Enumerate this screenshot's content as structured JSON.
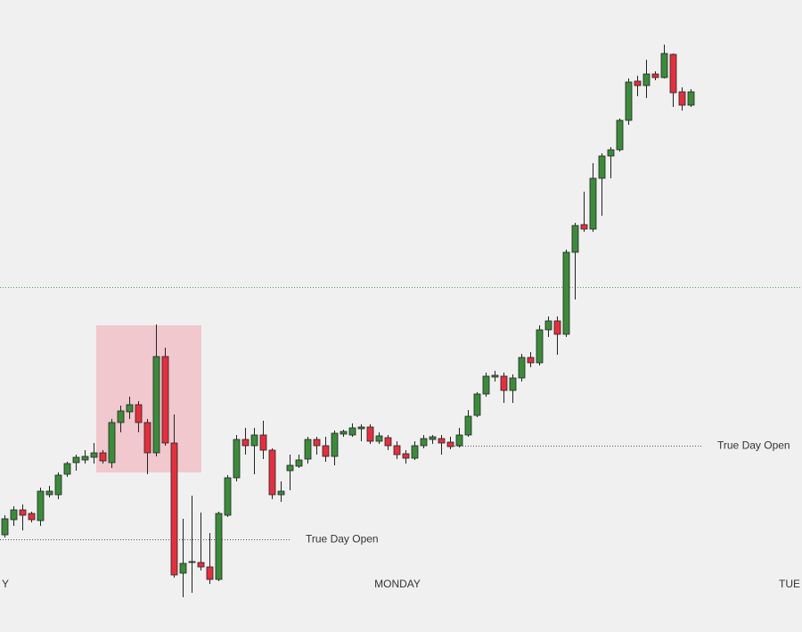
{
  "chart_data": {
    "type": "candlestick",
    "categories": [
      "Y",
      null,
      null,
      null,
      null,
      null,
      null,
      null,
      null,
      null,
      null,
      null,
      null,
      null,
      null,
      null,
      null,
      null,
      null,
      null,
      null,
      null,
      null,
      null,
      null,
      null,
      null,
      null,
      null,
      null,
      null,
      null,
      null,
      null,
      null,
      null,
      null,
      null,
      null,
      null,
      null,
      null,
      null,
      null,
      "MONDAY",
      null,
      null,
      null,
      null,
      null,
      null,
      null,
      null,
      null,
      null,
      null,
      null,
      null,
      null,
      null,
      null,
      null,
      null,
      null,
      null,
      null,
      null,
      null,
      null,
      null,
      null,
      null,
      null,
      null,
      null,
      null,
      null,
      null,
      null,
      null,
      null,
      null,
      null,
      null,
      null,
      null,
      null,
      null,
      "TUE"
    ],
    "open": [
      109,
      126,
      137,
      133,
      125,
      154,
      154,
      177,
      190,
      193,
      196,
      201,
      190,
      235,
      247,
      255,
      235,
      201,
      309,
      212,
      66,
      78,
      78,
      73,
      59,
      131,
      173,
      216,
      209,
      221,
      204,
      154,
      181,
      186,
      194,
      216,
      209,
      197,
      222,
      221,
      228,
      230,
      214,
      218,
      209,
      200,
      195,
      209,
      216,
      217,
      213,
      209,
      221,
      243,
      267,
      286,
      287,
      271,
      285,
      308,
      302,
      339,
      349,
      334,
      426,
      457,
      452,
      509,
      534,
      541,
      574,
      618,
      613,
      626,
      622,
      648,
      606,
      591,
      null,
      null,
      null,
      null,
      null,
      null,
      null,
      null,
      null,
      null,
      null
    ],
    "high": [
      131,
      141,
      143,
      135,
      162,
      164,
      179,
      191,
      199,
      204,
      212,
      204,
      239,
      254,
      264,
      259,
      239,
      345,
      319,
      244,
      127,
      153,
      134,
      111,
      135,
      176,
      221,
      229,
      229,
      237,
      206,
      169,
      199,
      199,
      219,
      219,
      219,
      226,
      227,
      234,
      233,
      233,
      224,
      221,
      214,
      204,
      214,
      221,
      221,
      221,
      219,
      229,
      249,
      269,
      291,
      293,
      291,
      289,
      312,
      314,
      344,
      354,
      354,
      429,
      459,
      494,
      526,
      537,
      544,
      576,
      621,
      624,
      642,
      629,
      659,
      649,
      611,
      609,
      null,
      null,
      null,
      null,
      null,
      null,
      null,
      null,
      null,
      null,
      null
    ],
    "low": [
      106,
      119,
      114,
      123,
      119,
      151,
      149,
      174,
      181,
      189,
      189,
      189,
      184,
      224,
      239,
      224,
      177,
      197,
      209,
      61,
      39,
      44,
      69,
      54,
      57,
      129,
      169,
      199,
      177,
      194,
      149,
      146,
      159,
      184,
      189,
      199,
      191,
      187,
      219,
      219,
      214,
      211,
      211,
      204,
      194,
      189,
      193,
      206,
      211,
      199,
      205,
      207,
      219,
      241,
      264,
      281,
      257,
      257,
      281,
      297,
      299,
      331,
      311,
      331,
      373,
      449,
      449,
      467,
      509,
      539,
      569,
      601,
      599,
      619,
      621,
      589,
      585,
      589,
      null,
      null,
      null,
      null,
      null,
      null,
      null,
      null,
      null,
      null,
      null
    ],
    "close": [
      127,
      137,
      131,
      126,
      158,
      158,
      176,
      189,
      196,
      197,
      201,
      192,
      235,
      248,
      255,
      235,
      201,
      309,
      212,
      64,
      77,
      79,
      73,
      59,
      133,
      173,
      216,
      209,
      221,
      204,
      154,
      158,
      187,
      193,
      216,
      209,
      197,
      223,
      225,
      229,
      230,
      214,
      220,
      209,
      199,
      195,
      209,
      217,
      219,
      212,
      208,
      221,
      242,
      267,
      287,
      288,
      271,
      285,
      308,
      302,
      339,
      349,
      334,
      426,
      456,
      452,
      509,
      534,
      541,
      574,
      617,
      613,
      626,
      622,
      649,
      605,
      591,
      606,
      null,
      null,
      null,
      null,
      null,
      null,
      null,
      null,
      null,
      null,
      null
    ],
    "up_color": "#3b8b3b",
    "down_color": "#e3303e",
    "ylim": [
      0,
      709
    ],
    "levels": [
      {
        "label": "True Day Open",
        "value": 104,
        "from": -0.5,
        "to": 32,
        "color": "#555555"
      },
      {
        "label": "True Day Open",
        "value": 209,
        "from": 50.5,
        "to": 78.2,
        "color": "#555555"
      },
      {
        "value": 387,
        "color": "#5a9a5a"
      }
    ],
    "zones": [
      {
        "x0": 10.3,
        "x1": 22.1,
        "y0": 179,
        "y1": 344,
        "color": "#f0c8cd"
      }
    ]
  }
}
